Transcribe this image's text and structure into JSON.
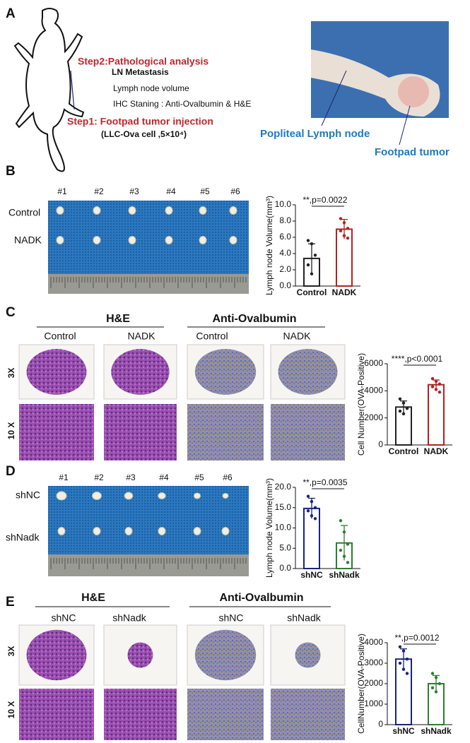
{
  "panel_a": {
    "letter": "A",
    "step2": "Step2:Pathological analysis",
    "items": [
      "LN Metastasis",
      "Lymph node volume",
      "IHC Staning : Anti-Ovalbumin & H&E"
    ],
    "step1": "Step1: Footpad tumor injection",
    "cells": "(LLC-Ova cell ,5×10⁴)",
    "photo_labels": [
      "Popliteal Lymph node",
      "Footpad tumor"
    ]
  },
  "panel_b": {
    "letter": "B",
    "samples": [
      "#1",
      "#2",
      "#3",
      "#4",
      "#5",
      "#6"
    ],
    "groups": [
      "Control",
      "NADK"
    ]
  },
  "panel_c": {
    "letter": "C",
    "stains": [
      "H&E",
      "Anti-Ovalbumin"
    ],
    "groups": [
      "Control",
      "NADK",
      "Control",
      "NADK"
    ],
    "magnifications": [
      "3X",
      "10 X"
    ]
  },
  "panel_d": {
    "letter": "D",
    "samples": [
      "#1",
      "#2",
      "#3",
      "#4",
      "#5",
      "#6"
    ],
    "groups": [
      "shNC",
      "shNadk"
    ]
  },
  "panel_e": {
    "letter": "E",
    "stains": [
      "H&E",
      "Anti-Ovalbumin"
    ],
    "groups": [
      "shNC",
      "shNadk",
      "shNC",
      "shNadk"
    ],
    "magnifications": [
      "3X",
      "10 X"
    ]
  },
  "chart_data": [
    {
      "type": "bar",
      "ylabel": "Lymph node Volume(mm³)",
      "categories": [
        "Control",
        "NADK"
      ],
      "values": [
        3.4,
        7.0
      ],
      "errors": [
        1.8,
        1.2
      ],
      "points": [
        [
          5.6,
          5.2,
          3.8,
          2.6,
          1.5
        ],
        [
          8.3,
          7.8,
          7.1,
          6.8,
          6.2,
          5.9
        ]
      ],
      "colors": [
        "#222222",
        "#b22222"
      ],
      "annotation": "**,p=0.0022",
      "ylim": [
        0,
        10
      ],
      "yticks": [
        {
          "value": 0,
          "label": "0.0"
        },
        {
          "value": 2,
          "label": "2.0"
        },
        {
          "value": 4,
          "label": "4.0"
        },
        {
          "value": 6,
          "label": "6.0"
        },
        {
          "value": 8,
          "label": "8.0"
        },
        {
          "value": 10,
          "label": "10.0"
        }
      ]
    },
    {
      "type": "bar",
      "ylabel": "Cell Number(OVA-Positive)",
      "categories": [
        "Control",
        "NADK"
      ],
      "values": [
        2800,
        4450
      ],
      "errors": [
        450,
        350
      ],
      "points": [
        [
          3400,
          3100,
          2700,
          2500,
          2300
        ],
        [
          4900,
          4700,
          4500,
          4300,
          4100,
          3900
        ]
      ],
      "colors": [
        "#222222",
        "#b22222"
      ],
      "annotation": "****,p<0.0001",
      "ylim": [
        0,
        6000
      ],
      "yticks": [
        0,
        2000,
        4000,
        6000
      ]
    },
    {
      "type": "bar",
      "ylabel": "Lymph node Volume(mm³)",
      "categories": [
        "shNC",
        "shNadk"
      ],
      "values": [
        14.8,
        6.3
      ],
      "errors": [
        2.5,
        4.3
      ],
      "points": [
        [
          17.8,
          16.5,
          15.0,
          14.2,
          13.0,
          12.3
        ],
        [
          11.8,
          9.0,
          6.0,
          4.5,
          3.0,
          1.5
        ]
      ],
      "colors": [
        "#1a237e",
        "#2e7d32"
      ],
      "annotation": "**,p=0.0035",
      "ylim": [
        0,
        20
      ],
      "yticks": [
        {
          "value": 0,
          "label": "0.0"
        },
        {
          "value": 5,
          "label": "5.0"
        },
        {
          "value": 10,
          "label": "10.0"
        },
        {
          "value": 15,
          "label": "15.0"
        },
        {
          "value": 20,
          "label": "20.0"
        }
      ]
    },
    {
      "type": "bar",
      "ylabel": "CellNumber(OVA-Positive)",
      "categories": [
        "shNC",
        "shNadk"
      ],
      "values": [
        3200,
        2000
      ],
      "errors": [
        500,
        400
      ],
      "points": [
        [
          3800,
          3600,
          3200,
          3000,
          2700,
          2500
        ],
        [
          2500,
          2300,
          2000,
          1800,
          1600
        ]
      ],
      "colors": [
        "#1a237e",
        "#2e7d32"
      ],
      "annotation": "**,p=0.0012",
      "ylim": [
        0,
        4000
      ],
      "yticks": [
        0,
        1000,
        2000,
        3000,
        4000
      ]
    }
  ]
}
